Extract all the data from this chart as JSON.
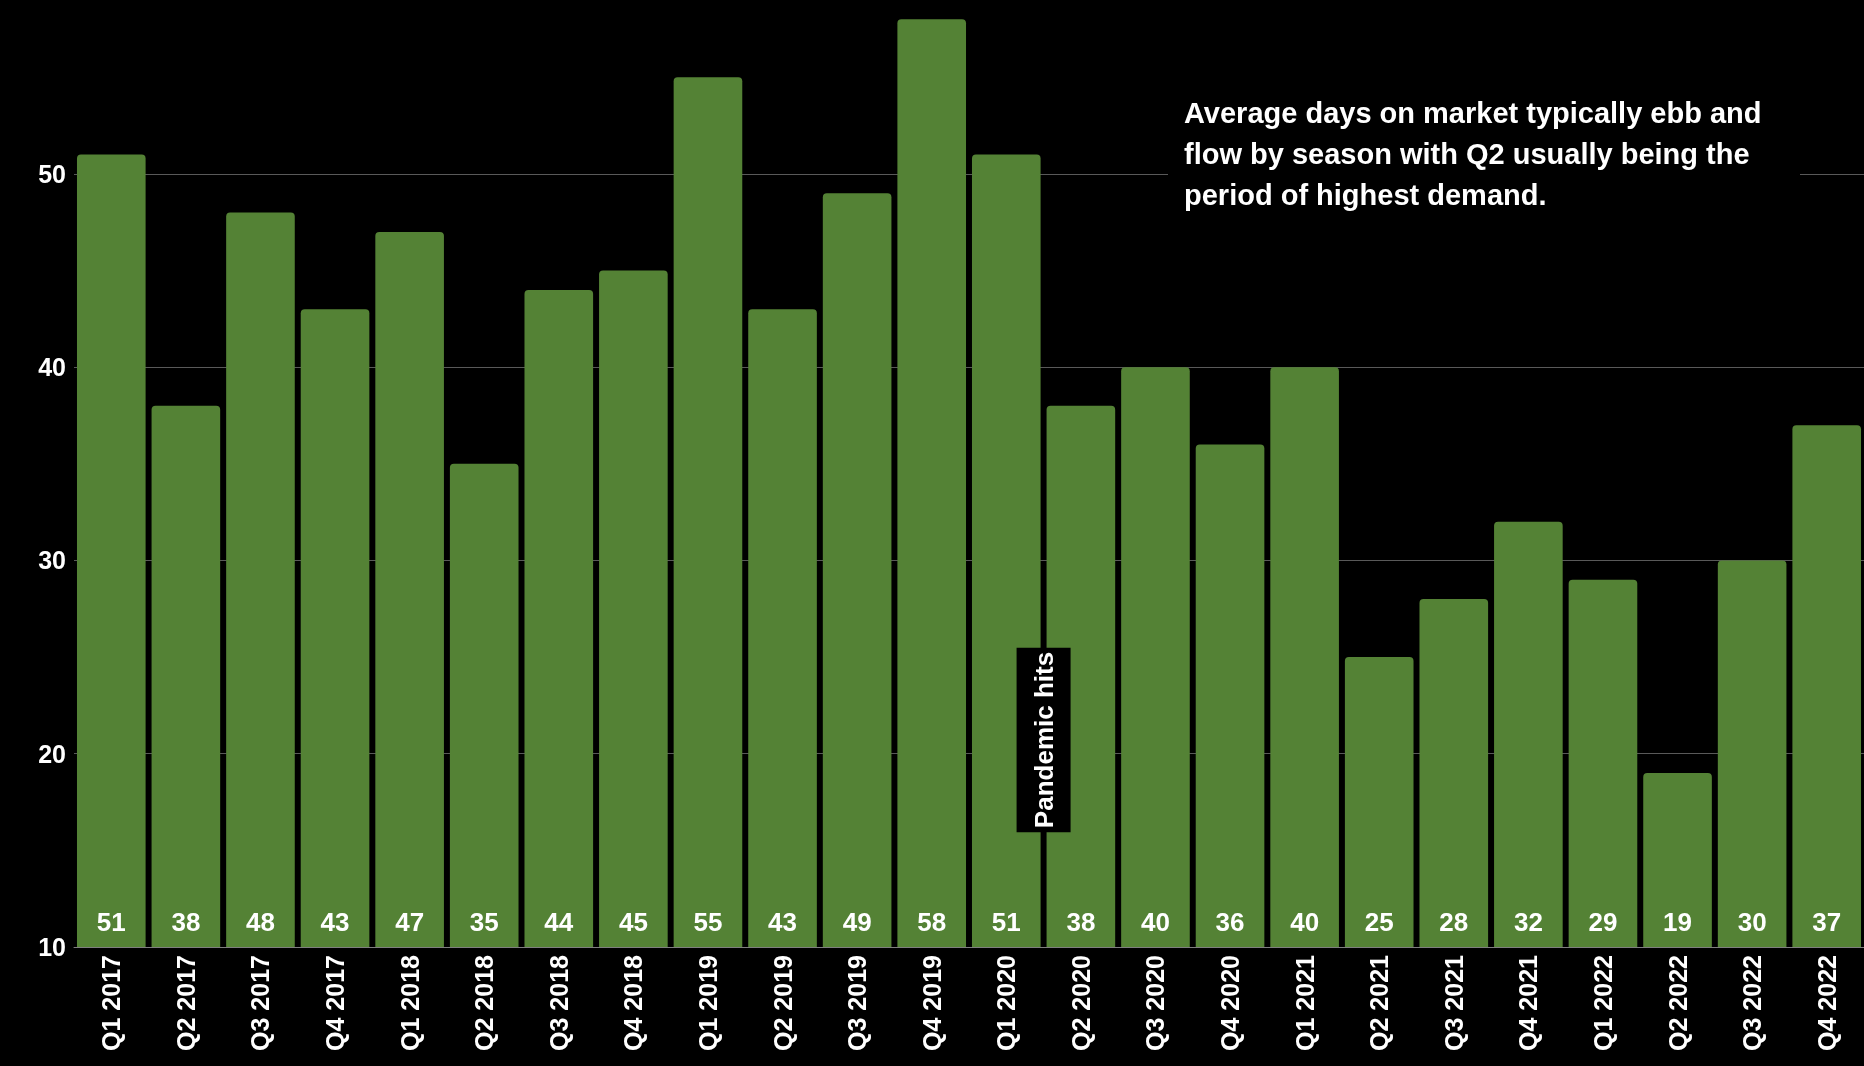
{
  "chart_data": {
    "type": "bar",
    "categories": [
      "Q1 2017",
      "Q2 2017",
      "Q3 2017",
      "Q4 2017",
      "Q1 2018",
      "Q2 2018",
      "Q3 2018",
      "Q4 2018",
      "Q1 2019",
      "Q2 2019",
      "Q3 2019",
      "Q4 2019",
      "Q1 2020",
      "Q2 2020",
      "Q3 2020",
      "Q4 2020",
      "Q1 2021",
      "Q2 2021",
      "Q3 2021",
      "Q4 2021",
      "Q1 2022",
      "Q2 2022",
      "Q3 2022",
      "Q4 2022"
    ],
    "values": [
      51,
      38,
      48,
      43,
      47,
      35,
      44,
      45,
      55,
      43,
      49,
      58,
      51,
      38,
      40,
      36,
      40,
      25,
      28,
      32,
      29,
      19,
      30,
      37
    ],
    "color": "#548235",
    "ylim": [
      10,
      59
    ],
    "yticks": [
      10,
      20,
      30,
      40,
      50
    ],
    "grid": "y",
    "data_labels": true,
    "annotations": [
      "Average days on market typically ebb and flow by season with Q2 usually being the period of highest demand.",
      "Pandemic hits"
    ]
  }
}
